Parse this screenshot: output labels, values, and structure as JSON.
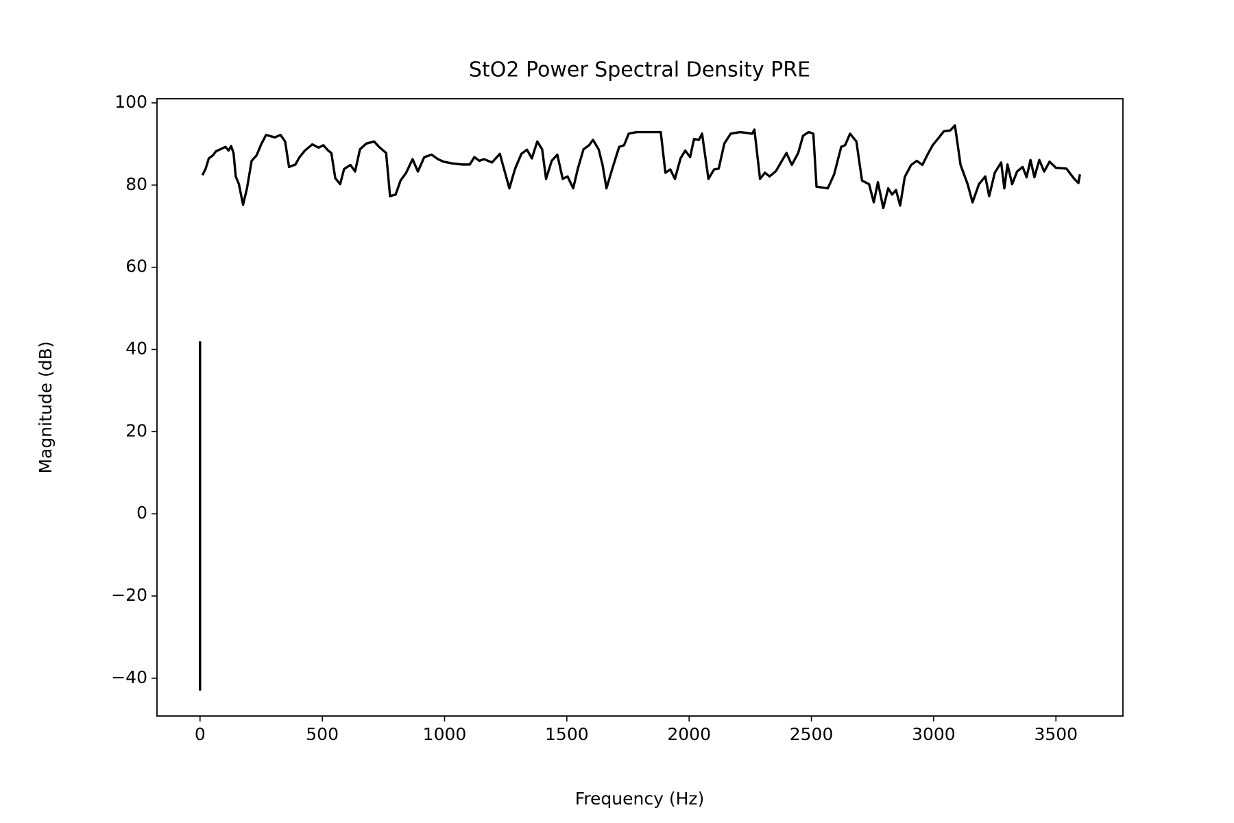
{
  "chart_data": {
    "type": "line",
    "title": "StO2 Power Spectral Density PRE",
    "x_label": "Frequency (Hz)",
    "y_label": "Magnitude (dB)",
    "color": "#000000",
    "xlim": [
      -176,
      3774
    ],
    "ylim": [
      -49.2,
      101
    ],
    "xticks": [
      0,
      500,
      1000,
      1500,
      2000,
      2500,
      3000,
      3500
    ],
    "yticks": [
      {
        "value": -40,
        "label": "−40"
      },
      {
        "value": -20,
        "label": "−20"
      },
      0,
      20,
      40,
      60,
      80,
      100
    ],
    "x": [
      0,
      0,
      0,
      10,
      23,
      36,
      52,
      65,
      104,
      117,
      127,
      137,
      146,
      159,
      176,
      192,
      211,
      231,
      250,
      270,
      306,
      329,
      348,
      364,
      390,
      407,
      429,
      459,
      485,
      504,
      524,
      537,
      553,
      573,
      589,
      615,
      634,
      654,
      680,
      712,
      732,
      761,
      777,
      800,
      820,
      843,
      869,
      891,
      917,
      947,
      973,
      995,
      1028,
      1070,
      1103,
      1122,
      1142,
      1161,
      1194,
      1226,
      1265,
      1288,
      1314,
      1337,
      1357,
      1379,
      1399,
      1415,
      1438,
      1461,
      1483,
      1503,
      1526,
      1545,
      1568,
      1591,
      1607,
      1630,
      1646,
      1662,
      1688,
      1714,
      1734,
      1753,
      1786,
      1835,
      1884,
      1903,
      1923,
      1942,
      1965,
      1984,
      2004,
      2020,
      2040,
      2053,
      2079,
      2102,
      2121,
      2144,
      2170,
      2209,
      2258,
      2267,
      2290,
      2310,
      2329,
      2355,
      2398,
      2420,
      2446,
      2466,
      2489,
      2508,
      2521,
      2567,
      2593,
      2622,
      2638,
      2658,
      2684,
      2707,
      2736,
      2755,
      2772,
      2794,
      2814,
      2830,
      2846,
      2863,
      2882,
      2908,
      2931,
      2954,
      2973,
      2996,
      3022,
      3042,
      3068,
      3087,
      3110,
      3139,
      3159,
      3185,
      3211,
      3227,
      3250,
      3276,
      3289,
      3302,
      3321,
      3341,
      3364,
      3380,
      3396,
      3412,
      3432,
      3452,
      3474,
      3500,
      3543,
      3575,
      3592,
      3598
    ],
    "values": [
      -43,
      42,
      null,
      82.4,
      84.0,
      86.5,
      87.2,
      88.2,
      89.3,
      88.4,
      89.5,
      87.8,
      82.1,
      80.2,
      75.2,
      79.2,
      85.9,
      87.2,
      89.9,
      92.2,
      91.6,
      92.2,
      90.6,
      84.4,
      85.0,
      86.8,
      88.4,
      89.9,
      89.1,
      89.7,
      88.4,
      87.8,
      81.7,
      80.2,
      83.9,
      84.9,
      83.3,
      88.7,
      90.1,
      90.6,
      89.3,
      87.8,
      77.3,
      77.7,
      81.1,
      83.0,
      86.3,
      83.3,
      86.8,
      87.4,
      86.3,
      85.7,
      85.3,
      85.0,
      85.0,
      86.8,
      85.9,
      86.3,
      85.5,
      87.6,
      79.2,
      83.9,
      87.6,
      88.6,
      86.5,
      90.6,
      88.7,
      81.5,
      85.9,
      87.4,
      81.5,
      82.1,
      79.2,
      84.0,
      88.7,
      89.7,
      91.0,
      88.7,
      84.9,
      79.2,
      84.4,
      89.3,
      89.7,
      92.5,
      92.9,
      92.9,
      92.9,
      83.0,
      83.8,
      81.5,
      86.5,
      88.4,
      86.8,
      91.2,
      91.0,
      92.5,
      81.5,
      83.8,
      84.0,
      90.1,
      92.5,
      92.9,
      92.5,
      93.5,
      81.5,
      83.0,
      82.1,
      83.4,
      87.8,
      84.9,
      87.8,
      92.0,
      92.9,
      92.5,
      79.6,
      79.2,
      82.6,
      89.3,
      89.7,
      92.5,
      90.6,
      81.1,
      80.2,
      75.8,
      80.7,
      74.4,
      79.2,
      77.7,
      78.8,
      75.0,
      82.0,
      84.9,
      85.9,
      84.9,
      87.2,
      89.7,
      91.6,
      93.1,
      93.3,
      94.5,
      84.9,
      80.2,
      75.8,
      80.2,
      82.1,
      77.3,
      83.0,
      85.5,
      79.2,
      85.0,
      80.2,
      83.3,
      84.4,
      81.9,
      86.1,
      81.9,
      86.1,
      83.3,
      85.7,
      84.2,
      84.0,
      81.5,
      80.5,
      82.6
    ]
  }
}
